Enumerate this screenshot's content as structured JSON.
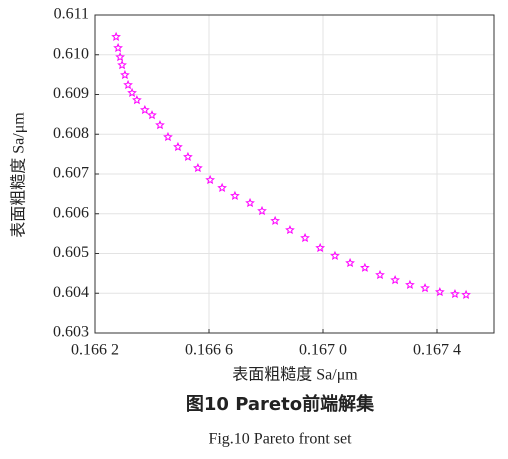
{
  "chart_data": {
    "type": "scatter",
    "x_label": "表面粗糙度 Sa/μm",
    "y_label": "表面粗糙度 Sa/μm",
    "caption_cn": "图10  Pareto前端解集",
    "caption_en": "Fig.10  Pareto front set",
    "color": "#ff00ff",
    "marker": "star",
    "grid": true,
    "xlim": [
      0.1662,
      0.1676
    ],
    "ylim": [
      0.603,
      0.611
    ],
    "xticks": [
      {
        "value": 0.1662,
        "label": "0.166 2"
      },
      {
        "value": 0.1666,
        "label": "0.166 6"
      },
      {
        "value": 0.167,
        "label": "0.167 0"
      },
      {
        "value": 0.1674,
        "label": "0.167 4"
      }
    ],
    "yticks": [
      {
        "value": 0.603,
        "label": "0.603"
      },
      {
        "value": 0.604,
        "label": "0.604"
      },
      {
        "value": 0.605,
        "label": "0.605"
      },
      {
        "value": 0.606,
        "label": "0.606"
      },
      {
        "value": 0.607,
        "label": "0.607"
      },
      {
        "value": 0.608,
        "label": "0.608"
      },
      {
        "value": 0.609,
        "label": "0.609"
      },
      {
        "value": 0.61,
        "label": "0.610"
      },
      {
        "value": 0.611,
        "label": "0.611"
      }
    ],
    "x": [
      0.166274,
      0.166281,
      0.166288,
      0.166295,
      0.166305,
      0.166316,
      0.16633,
      0.166347,
      0.166375,
      0.1664,
      0.166428,
      0.166456,
      0.166491,
      0.166526,
      0.166561,
      0.166604,
      0.166646,
      0.166691,
      0.166744,
      0.166786,
      0.166832,
      0.166884,
      0.166937,
      0.16699,
      0.167042,
      0.167095,
      0.167147,
      0.1672,
      0.167253,
      0.167305,
      0.167358,
      0.16741,
      0.167463,
      0.167502
    ],
    "values": [
      0.61045,
      0.61017,
      0.60994,
      0.60974,
      0.60949,
      0.60924,
      0.60904,
      0.60886,
      0.60861,
      0.60848,
      0.60823,
      0.60793,
      0.60768,
      0.60743,
      0.60715,
      0.60685,
      0.60665,
      0.60645,
      0.60627,
      0.60607,
      0.60582,
      0.60559,
      0.60539,
      0.60514,
      0.60494,
      0.60476,
      0.60464,
      0.60446,
      0.60433,
      0.60421,
      0.60413,
      0.60403,
      0.60398,
      0.60396
    ]
  }
}
